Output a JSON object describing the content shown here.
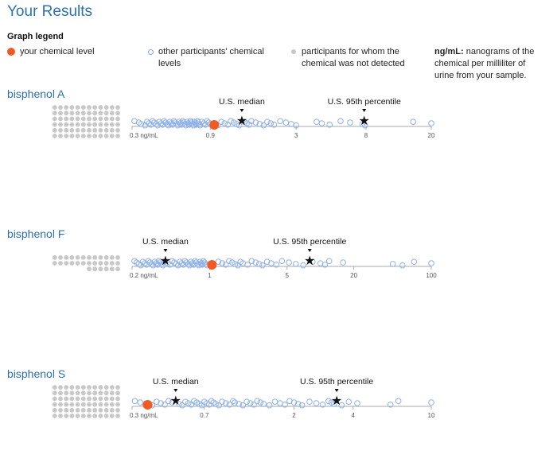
{
  "page": {
    "title": "Your Results"
  },
  "legend": {
    "title": "Graph legend",
    "your_level": "your chemical level",
    "other_participants": "other participants' chemical levels",
    "not_detected": "participants for whom the chemical was not detected",
    "unit_term": "ng/mL:",
    "unit_definition": " nanograms of the chemical per milliliter of urine from your sample.",
    "colors": {
      "your_level": "#f15a22",
      "other": "#8fb1ea",
      "not_detected": "#c8c8c8"
    }
  },
  "chart_data": [
    {
      "type": "scatter",
      "chemical": "bisphenol A",
      "scale": "log",
      "xlim": [
        0.3,
        20
      ],
      "ticks": [
        0.3,
        0.9,
        3,
        8,
        20
      ],
      "tick_labels": [
        "0.3 ng/mL",
        "0.9",
        "3",
        "8",
        "20"
      ],
      "your_value": 0.95,
      "median": {
        "label": "U.S. median",
        "value": 1.4
      },
      "p95": {
        "label": "U.S. 95th percentile",
        "value": 7.8
      },
      "not_detected_count": 72,
      "participants": [
        0.31,
        0.33,
        0.34,
        0.36,
        0.37,
        0.38,
        0.39,
        0.4,
        0.41,
        0.42,
        0.43,
        0.44,
        0.45,
        0.46,
        0.47,
        0.48,
        0.49,
        0.5,
        0.51,
        0.52,
        0.53,
        0.54,
        0.55,
        0.56,
        0.57,
        0.58,
        0.59,
        0.6,
        0.61,
        0.62,
        0.63,
        0.64,
        0.65,
        0.66,
        0.67,
        0.68,
        0.69,
        0.7,
        0.71,
        0.72,
        0.73,
        0.74,
        0.75,
        0.76,
        0.77,
        0.78,
        0.8,
        0.82,
        0.84,
        0.86,
        0.88,
        0.9,
        1.0,
        1.05,
        1.1,
        1.15,
        1.2,
        1.25,
        1.3,
        1.35,
        1.45,
        1.5,
        1.55,
        1.6,
        1.7,
        1.8,
        1.9,
        2.0,
        2.1,
        2.2,
        2.4,
        2.6,
        2.8,
        3.0,
        4.0,
        4.3,
        4.8,
        5.6,
        6.4,
        7.6,
        7.9,
        15.5,
        20
      ]
    },
    {
      "type": "scatter",
      "chemical": "bisphenol F",
      "scale": "log",
      "xlim": [
        0.2,
        100
      ],
      "ticks": [
        0.2,
        1,
        5,
        20,
        100
      ],
      "tick_labels": [
        "0.2 ng/mL",
        "1",
        "5",
        "20",
        "100"
      ],
      "your_value": 1.05,
      "median": {
        "label": "U.S. median",
        "value": 0.4
      },
      "p95": {
        "label": "U.S. 95th percentile",
        "value": 8
      },
      "not_detected_count": 30,
      "participants": [
        0.21,
        0.22,
        0.23,
        0.24,
        0.25,
        0.26,
        0.27,
        0.28,
        0.29,
        0.3,
        0.31,
        0.32,
        0.33,
        0.34,
        0.35,
        0.36,
        0.37,
        0.38,
        0.39,
        0.42,
        0.44,
        0.46,
        0.48,
        0.5,
        0.52,
        0.54,
        0.56,
        0.58,
        0.6,
        0.62,
        0.64,
        0.66,
        0.68,
        0.7,
        0.72,
        0.74,
        0.76,
        0.78,
        0.8,
        0.82,
        0.84,
        0.86,
        0.88,
        0.9,
        0.92,
        0.95,
        1.2,
        1.3,
        1.4,
        1.5,
        1.6,
        1.7,
        1.8,
        1.9,
        2.0,
        2.2,
        2.4,
        2.6,
        2.8,
        3.0,
        3.3,
        3.6,
        4.0,
        4.5,
        5.2,
        6.0,
        7.0,
        8.5,
        10,
        11,
        12,
        16,
        45,
        55,
        70,
        100
      ]
    },
    {
      "type": "scatter",
      "chemical": "bisphenol S",
      "scale": "log",
      "xlim": [
        0.3,
        10
      ],
      "ticks": [
        0.3,
        0.7,
        2,
        4,
        10
      ],
      "tick_labels": [
        "0.3 ng/mL",
        "0.7",
        "2",
        "4",
        "10"
      ],
      "your_value": 0.36,
      "median": {
        "label": "U.S. median",
        "value": 0.5
      },
      "p95": {
        "label": "U.S. 95th percentile",
        "value": 3.3
      },
      "not_detected_count": 72,
      "participants": [
        0.31,
        0.33,
        0.35,
        0.38,
        0.4,
        0.42,
        0.44,
        0.46,
        0.48,
        0.52,
        0.54,
        0.56,
        0.58,
        0.6,
        0.62,
        0.64,
        0.66,
        0.68,
        0.7,
        0.72,
        0.74,
        0.76,
        0.78,
        0.8,
        0.83,
        0.86,
        0.9,
        0.94,
        0.98,
        1.0,
        1.05,
        1.1,
        1.15,
        1.2,
        1.25,
        1.3,
        1.35,
        1.4,
        1.5,
        1.6,
        1.7,
        1.8,
        1.9,
        2.0,
        2.1,
        2.2,
        2.4,
        2.6,
        2.8,
        3.0,
        3.1,
        3.2,
        3.5,
        3.8,
        4.2,
        6.2,
        6.8,
        10
      ]
    }
  ]
}
